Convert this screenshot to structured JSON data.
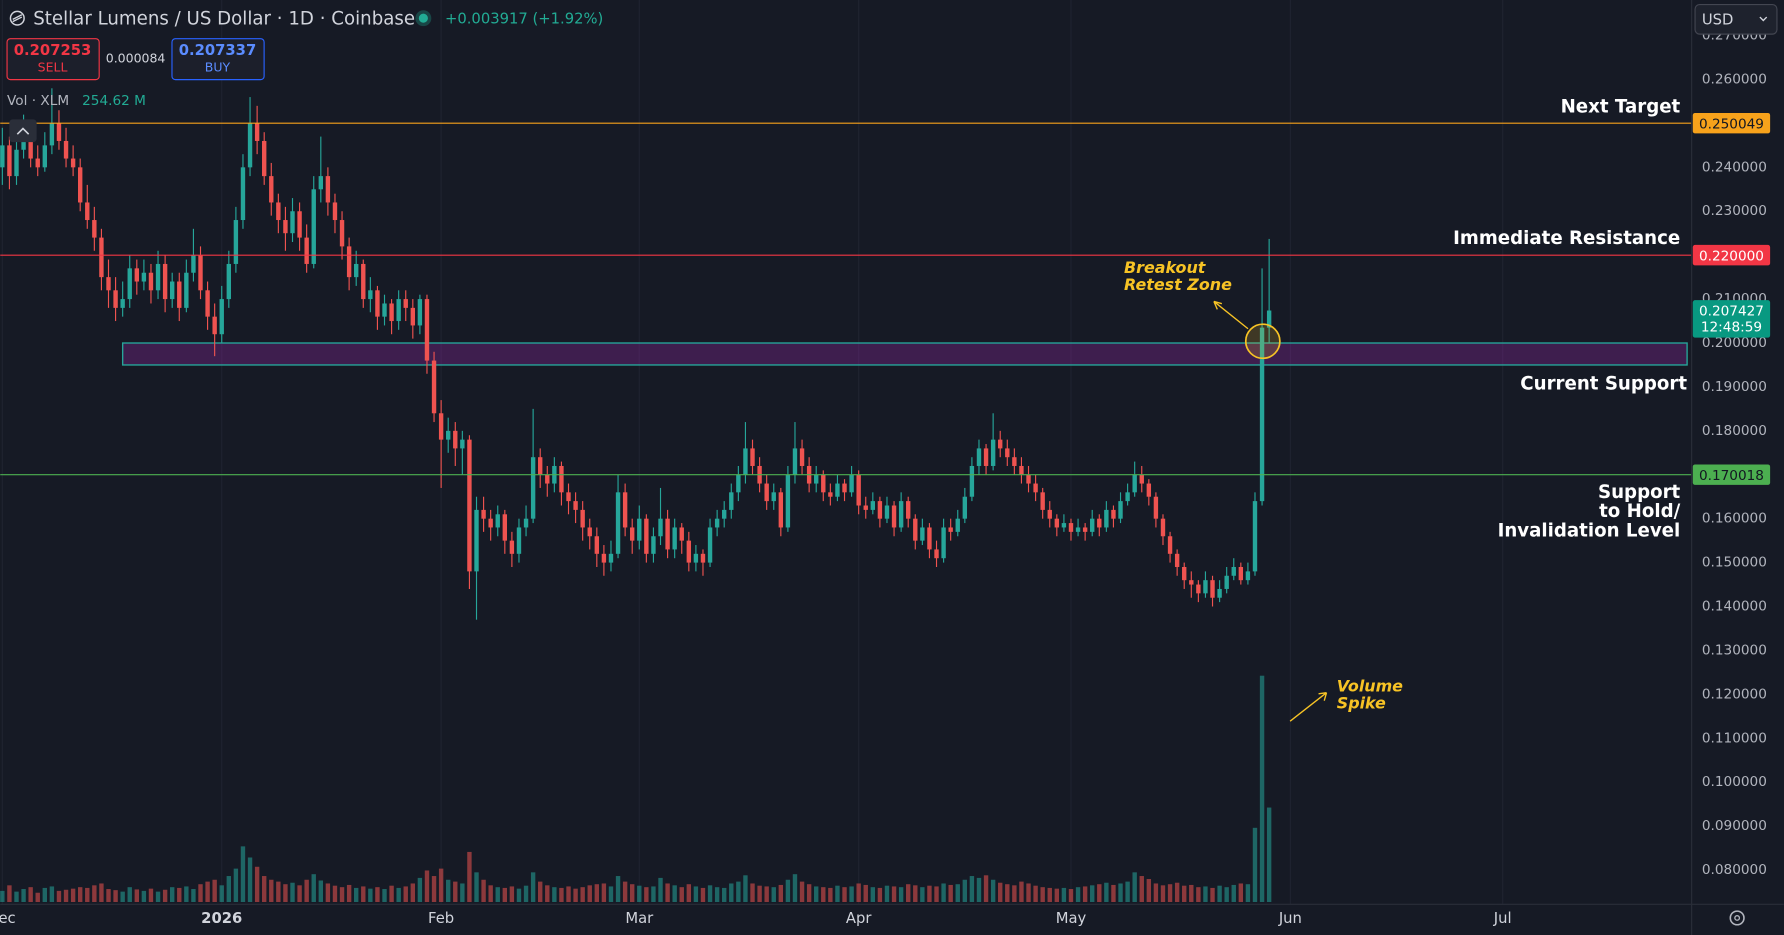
{
  "header": {
    "title": "Stellar Lumens / US Dollar · 1D · Coinbase",
    "change": "+0.003917 (+1.92%)",
    "sell": {
      "price": "0.207253",
      "label": "SELL"
    },
    "spread": "0.000084",
    "buy": {
      "price": "0.207337",
      "label": "BUY"
    },
    "volume_label": "Vol · XLM",
    "volume_value": "254.62 M",
    "currency": "USD"
  },
  "chart_data": {
    "type": "candlestick",
    "candles": [
      [
        0.24,
        0.249,
        0.236,
        0.245
      ],
      [
        0.245,
        0.247,
        0.235,
        0.238
      ],
      [
        0.238,
        0.246,
        0.236,
        0.244
      ],
      [
        0.244,
        0.252,
        0.242,
        0.248
      ],
      [
        0.248,
        0.25,
        0.24,
        0.242
      ],
      [
        0.242,
        0.245,
        0.238,
        0.24
      ],
      [
        0.24,
        0.248,
        0.239,
        0.245
      ],
      [
        0.245,
        0.258,
        0.243,
        0.25
      ],
      [
        0.25,
        0.253,
        0.244,
        0.246
      ],
      [
        0.246,
        0.249,
        0.24,
        0.242
      ],
      [
        0.242,
        0.245,
        0.238,
        0.24
      ],
      [
        0.24,
        0.242,
        0.23,
        0.232
      ],
      [
        0.232,
        0.236,
        0.226,
        0.228
      ],
      [
        0.228,
        0.231,
        0.221,
        0.224
      ],
      [
        0.224,
        0.226,
        0.212,
        0.215
      ],
      [
        0.215,
        0.219,
        0.208,
        0.212
      ],
      [
        0.212,
        0.215,
        0.205,
        0.208
      ],
      [
        0.208,
        0.214,
        0.206,
        0.21
      ],
      [
        0.21,
        0.22,
        0.208,
        0.217
      ],
      [
        0.217,
        0.219,
        0.211,
        0.214
      ],
      [
        0.214,
        0.219,
        0.212,
        0.216
      ],
      [
        0.216,
        0.218,
        0.209,
        0.212
      ],
      [
        0.212,
        0.221,
        0.21,
        0.218
      ],
      [
        0.218,
        0.22,
        0.207,
        0.21
      ],
      [
        0.21,
        0.216,
        0.208,
        0.214
      ],
      [
        0.214,
        0.216,
        0.205,
        0.208
      ],
      [
        0.208,
        0.219,
        0.207,
        0.216
      ],
      [
        0.216,
        0.226,
        0.214,
        0.22
      ],
      [
        0.22,
        0.222,
        0.21,
        0.212
      ],
      [
        0.212,
        0.214,
        0.203,
        0.206
      ],
      [
        0.206,
        0.209,
        0.197,
        0.202
      ],
      [
        0.202,
        0.213,
        0.2,
        0.21
      ],
      [
        0.21,
        0.221,
        0.208,
        0.218
      ],
      [
        0.218,
        0.231,
        0.216,
        0.228
      ],
      [
        0.228,
        0.243,
        0.226,
        0.24
      ],
      [
        0.24,
        0.256,
        0.238,
        0.25
      ],
      [
        0.25,
        0.254,
        0.243,
        0.246
      ],
      [
        0.246,
        0.248,
        0.236,
        0.238
      ],
      [
        0.238,
        0.241,
        0.229,
        0.232
      ],
      [
        0.232,
        0.234,
        0.225,
        0.228
      ],
      [
        0.228,
        0.231,
        0.221,
        0.225
      ],
      [
        0.225,
        0.233,
        0.223,
        0.23
      ],
      [
        0.23,
        0.232,
        0.221,
        0.224
      ],
      [
        0.224,
        0.227,
        0.216,
        0.218
      ],
      [
        0.218,
        0.238,
        0.217,
        0.235
      ],
      [
        0.235,
        0.247,
        0.232,
        0.238
      ],
      [
        0.238,
        0.24,
        0.229,
        0.232
      ],
      [
        0.232,
        0.234,
        0.225,
        0.228
      ],
      [
        0.228,
        0.23,
        0.219,
        0.222
      ],
      [
        0.222,
        0.224,
        0.212,
        0.215
      ],
      [
        0.215,
        0.221,
        0.213,
        0.218
      ],
      [
        0.218,
        0.219,
        0.208,
        0.21
      ],
      [
        0.21,
        0.215,
        0.207,
        0.212
      ],
      [
        0.212,
        0.213,
        0.203,
        0.206
      ],
      [
        0.206,
        0.211,
        0.204,
        0.209
      ],
      [
        0.209,
        0.21,
        0.202,
        0.205
      ],
      [
        0.205,
        0.212,
        0.203,
        0.21
      ],
      [
        0.21,
        0.212,
        0.205,
        0.208
      ],
      [
        0.208,
        0.21,
        0.201,
        0.204
      ],
      [
        0.204,
        0.211,
        0.202,
        0.21
      ],
      [
        0.21,
        0.211,
        0.193,
        0.196
      ],
      [
        0.196,
        0.198,
        0.182,
        0.184
      ],
      [
        0.184,
        0.187,
        0.167,
        0.178
      ],
      [
        0.178,
        0.183,
        0.175,
        0.18
      ],
      [
        0.18,
        0.182,
        0.172,
        0.176
      ],
      [
        0.176,
        0.18,
        0.17,
        0.178
      ],
      [
        0.178,
        0.179,
        0.144,
        0.148
      ],
      [
        0.148,
        0.165,
        0.137,
        0.162
      ],
      [
        0.162,
        0.165,
        0.157,
        0.16
      ],
      [
        0.16,
        0.162,
        0.155,
        0.158
      ],
      [
        0.158,
        0.163,
        0.156,
        0.161
      ],
      [
        0.161,
        0.162,
        0.152,
        0.155
      ],
      [
        0.155,
        0.157,
        0.149,
        0.152
      ],
      [
        0.152,
        0.16,
        0.15,
        0.158
      ],
      [
        0.158,
        0.163,
        0.156,
        0.16
      ],
      [
        0.16,
        0.185,
        0.159,
        0.174
      ],
      [
        0.174,
        0.176,
        0.167,
        0.17
      ],
      [
        0.17,
        0.172,
        0.165,
        0.168
      ],
      [
        0.168,
        0.174,
        0.166,
        0.172
      ],
      [
        0.172,
        0.173,
        0.163,
        0.166
      ],
      [
        0.166,
        0.168,
        0.161,
        0.164
      ],
      [
        0.164,
        0.166,
        0.159,
        0.162
      ],
      [
        0.162,
        0.164,
        0.155,
        0.158
      ],
      [
        0.158,
        0.16,
        0.153,
        0.156
      ],
      [
        0.156,
        0.158,
        0.149,
        0.152
      ],
      [
        0.152,
        0.154,
        0.147,
        0.15
      ],
      [
        0.15,
        0.155,
        0.148,
        0.152
      ],
      [
        0.152,
        0.17,
        0.151,
        0.166
      ],
      [
        0.166,
        0.168,
        0.156,
        0.158
      ],
      [
        0.158,
        0.16,
        0.152,
        0.155
      ],
      [
        0.155,
        0.163,
        0.153,
        0.16
      ],
      [
        0.16,
        0.161,
        0.15,
        0.152
      ],
      [
        0.152,
        0.158,
        0.15,
        0.156
      ],
      [
        0.156,
        0.167,
        0.154,
        0.16
      ],
      [
        0.16,
        0.162,
        0.151,
        0.153
      ],
      [
        0.153,
        0.16,
        0.151,
        0.158
      ],
      [
        0.158,
        0.159,
        0.152,
        0.155
      ],
      [
        0.155,
        0.157,
        0.148,
        0.15
      ],
      [
        0.15,
        0.154,
        0.148,
        0.152
      ],
      [
        0.152,
        0.153,
        0.147,
        0.15
      ],
      [
        0.15,
        0.16,
        0.149,
        0.158
      ],
      [
        0.158,
        0.162,
        0.156,
        0.16
      ],
      [
        0.16,
        0.164,
        0.158,
        0.162
      ],
      [
        0.162,
        0.168,
        0.16,
        0.166
      ],
      [
        0.166,
        0.172,
        0.164,
        0.17
      ],
      [
        0.17,
        0.182,
        0.168,
        0.176
      ],
      [
        0.176,
        0.178,
        0.17,
        0.172
      ],
      [
        0.172,
        0.174,
        0.166,
        0.168
      ],
      [
        0.168,
        0.17,
        0.162,
        0.164
      ],
      [
        0.164,
        0.168,
        0.162,
        0.166
      ],
      [
        0.166,
        0.167,
        0.156,
        0.158
      ],
      [
        0.158,
        0.172,
        0.157,
        0.17
      ],
      [
        0.17,
        0.182,
        0.168,
        0.176
      ],
      [
        0.176,
        0.178,
        0.17,
        0.172
      ],
      [
        0.172,
        0.174,
        0.166,
        0.168
      ],
      [
        0.168,
        0.172,
        0.166,
        0.17
      ],
      [
        0.17,
        0.171,
        0.164,
        0.166
      ],
      [
        0.166,
        0.168,
        0.163,
        0.165
      ],
      [
        0.165,
        0.17,
        0.164,
        0.168
      ],
      [
        0.168,
        0.169,
        0.164,
        0.166
      ],
      [
        0.166,
        0.172,
        0.165,
        0.17
      ],
      [
        0.17,
        0.171,
        0.161,
        0.163
      ],
      [
        0.163,
        0.165,
        0.16,
        0.162
      ],
      [
        0.162,
        0.166,
        0.161,
        0.164
      ],
      [
        0.164,
        0.165,
        0.158,
        0.16
      ],
      [
        0.16,
        0.165,
        0.159,
        0.163
      ],
      [
        0.163,
        0.164,
        0.156,
        0.158
      ],
      [
        0.158,
        0.166,
        0.157,
        0.164
      ],
      [
        0.164,
        0.165,
        0.158,
        0.16
      ],
      [
        0.16,
        0.161,
        0.153,
        0.155
      ],
      [
        0.155,
        0.16,
        0.154,
        0.158
      ],
      [
        0.158,
        0.159,
        0.151,
        0.153
      ],
      [
        0.153,
        0.155,
        0.149,
        0.151
      ],
      [
        0.151,
        0.16,
        0.15,
        0.158
      ],
      [
        0.158,
        0.16,
        0.155,
        0.157
      ],
      [
        0.157,
        0.162,
        0.156,
        0.16
      ],
      [
        0.16,
        0.167,
        0.159,
        0.165
      ],
      [
        0.165,
        0.174,
        0.164,
        0.172
      ],
      [
        0.172,
        0.178,
        0.17,
        0.176
      ],
      [
        0.176,
        0.177,
        0.17,
        0.172
      ],
      [
        0.172,
        0.184,
        0.171,
        0.178
      ],
      [
        0.178,
        0.18,
        0.174,
        0.176
      ],
      [
        0.176,
        0.178,
        0.172,
        0.174
      ],
      [
        0.174,
        0.176,
        0.17,
        0.172
      ],
      [
        0.172,
        0.174,
        0.168,
        0.17
      ],
      [
        0.17,
        0.172,
        0.166,
        0.168
      ],
      [
        0.168,
        0.17,
        0.164,
        0.166
      ],
      [
        0.166,
        0.167,
        0.16,
        0.162
      ],
      [
        0.162,
        0.164,
        0.158,
        0.16
      ],
      [
        0.16,
        0.161,
        0.156,
        0.158
      ],
      [
        0.158,
        0.161,
        0.157,
        0.159
      ],
      [
        0.159,
        0.16,
        0.155,
        0.157
      ],
      [
        0.157,
        0.16,
        0.156,
        0.158
      ],
      [
        0.158,
        0.159,
        0.155,
        0.157
      ],
      [
        0.157,
        0.162,
        0.156,
        0.16
      ],
      [
        0.16,
        0.161,
        0.156,
        0.158
      ],
      [
        0.158,
        0.164,
        0.157,
        0.162
      ],
      [
        0.162,
        0.163,
        0.158,
        0.16
      ],
      [
        0.16,
        0.166,
        0.159,
        0.164
      ],
      [
        0.164,
        0.168,
        0.163,
        0.166
      ],
      [
        0.166,
        0.173,
        0.165,
        0.17
      ],
      [
        0.17,
        0.172,
        0.166,
        0.168
      ],
      [
        0.168,
        0.169,
        0.163,
        0.165
      ],
      [
        0.165,
        0.166,
        0.158,
        0.16
      ],
      [
        0.16,
        0.161,
        0.154,
        0.156
      ],
      [
        0.156,
        0.157,
        0.15,
        0.152
      ],
      [
        0.152,
        0.153,
        0.147,
        0.149
      ],
      [
        0.149,
        0.15,
        0.144,
        0.146
      ],
      [
        0.146,
        0.148,
        0.142,
        0.145
      ],
      [
        0.145,
        0.146,
        0.141,
        0.143
      ],
      [
        0.143,
        0.148,
        0.142,
        0.146
      ],
      [
        0.146,
        0.147,
        0.14,
        0.142
      ],
      [
        0.142,
        0.146,
        0.141,
        0.144
      ],
      [
        0.144,
        0.149,
        0.143,
        0.147
      ],
      [
        0.147,
        0.151,
        0.146,
        0.149
      ],
      [
        0.149,
        0.15,
        0.145,
        0.146
      ],
      [
        0.146,
        0.15,
        0.145,
        0.148
      ],
      [
        0.148,
        0.166,
        0.147,
        0.164
      ],
      [
        0.164,
        0.217,
        0.163,
        0.2035
      ],
      [
        0.2035,
        0.2237,
        0.2,
        0.2074
      ]
    ],
    "volume": [
      30,
      45,
      28,
      35,
      40,
      25,
      38,
      42,
      30,
      33,
      36,
      40,
      38,
      45,
      50,
      35,
      32,
      28,
      40,
      34,
      30,
      36,
      28,
      33,
      40,
      38,
      42,
      35,
      48,
      55,
      60,
      45,
      70,
      90,
      150,
      120,
      95,
      70,
      60,
      55,
      48,
      52,
      45,
      60,
      75,
      58,
      50,
      44,
      40,
      46,
      38,
      42,
      36,
      40,
      35,
      44,
      38,
      42,
      50,
      65,
      85,
      70,
      90,
      60,
      55,
      50,
      135,
      80,
      60,
      45,
      40,
      38,
      42,
      36,
      44,
      80,
      55,
      45,
      40,
      38,
      42,
      36,
      40,
      45,
      48,
      50,
      42,
      70,
      55,
      48,
      44,
      40,
      42,
      65,
      50,
      45,
      40,
      48,
      42,
      38,
      45,
      40,
      38,
      50,
      55,
      72,
      50,
      44,
      42,
      40,
      46,
      60,
      75,
      55,
      48,
      42,
      40,
      38,
      44,
      40,
      42,
      50,
      46,
      40,
      38,
      44,
      42,
      40,
      48,
      45,
      40,
      44,
      42,
      50,
      46,
      48,
      60,
      70,
      65,
      72,
      60,
      52,
      48,
      45,
      55,
      50,
      44,
      40,
      38,
      36,
      38,
      35,
      40,
      42,
      45,
      48,
      52,
      46,
      50,
      55,
      80,
      70,
      62,
      50,
      45,
      48,
      52,
      44,
      46,
      40,
      42,
      38,
      44,
      40,
      46,
      50,
      48,
      200,
      610,
      254.62
    ],
    "volume_lim": [
      0,
      650
    ],
    "up_color": "#26a69a",
    "down_color": "#ef5350",
    "xlim": [
      -0.3,
      238.7
    ],
    "xticks": [
      {
        "value": 0,
        "label": "ec"
      },
      {
        "value": 31,
        "label": "2026"
      },
      {
        "value": 62,
        "label": "Feb"
      },
      {
        "value": 90,
        "label": "Mar"
      },
      {
        "value": 121,
        "label": "Apr"
      },
      {
        "value": 151,
        "label": "May"
      },
      {
        "value": 182,
        "label": "Jun"
      },
      {
        "value": 212,
        "label": "Jul"
      }
    ],
    "ylim": [
      0.0722,
      0.2781
    ],
    "yticks": [
      {
        "value": 0.08,
        "label": "0.080000"
      },
      {
        "value": 0.09,
        "label": "0.090000"
      },
      {
        "value": 0.1,
        "label": "0.100000"
      },
      {
        "value": 0.11,
        "label": "0.110000"
      },
      {
        "value": 0.12,
        "label": "0.120000"
      },
      {
        "value": 0.13,
        "label": "0.130000"
      },
      {
        "value": 0.14,
        "label": "0.140000"
      },
      {
        "value": 0.15,
        "label": "0.150000"
      },
      {
        "value": 0.16,
        "label": "0.160000"
      },
      {
        "value": 0.17,
        "label": "0.170000"
      },
      {
        "value": 0.18,
        "label": "0.180000"
      },
      {
        "value": 0.19,
        "label": "0.190000"
      },
      {
        "value": 0.2,
        "label": "0.200000"
      },
      {
        "value": 0.21,
        "label": "0.210000"
      },
      {
        "value": 0.22,
        "label": "0.220000"
      },
      {
        "value": 0.23,
        "label": "0.230000"
      },
      {
        "value": 0.24,
        "label": "0.240000"
      },
      {
        "value": 0.25,
        "label": "0.250000"
      },
      {
        "value": 0.26,
        "label": "0.260000"
      },
      {
        "value": 0.27,
        "label": "0.270000"
      }
    ],
    "grid": true,
    "levels": [
      {
        "name": "Next Target",
        "value": 0.250049,
        "label": "0.250049",
        "color": "#f7a21b",
        "text_color": "#131722"
      },
      {
        "name": "Immediate Resistance",
        "value": 0.22,
        "label": "0.220000",
        "color": "#f23645",
        "text_color": "#ffffff"
      },
      {
        "name": [
          "Support",
          "to Hold/",
          "Invalidation Level"
        ],
        "value": 0.170018,
        "label": "0.170018",
        "color": "#4caf50",
        "text_color": "#131722"
      }
    ],
    "zone": {
      "name": "Current Support",
      "range": [
        0.195,
        0.2
      ],
      "start": 17,
      "color": "#26a69a"
    },
    "last_price": {
      "value": 0.207427,
      "label": "0.207427",
      "countdown": "12:48:59"
    },
    "annotations": [
      {
        "lines": [
          "Breakout",
          "Retest Zone"
        ]
      },
      {
        "lines": [
          "Volume",
          "Spike"
        ]
      }
    ]
  }
}
